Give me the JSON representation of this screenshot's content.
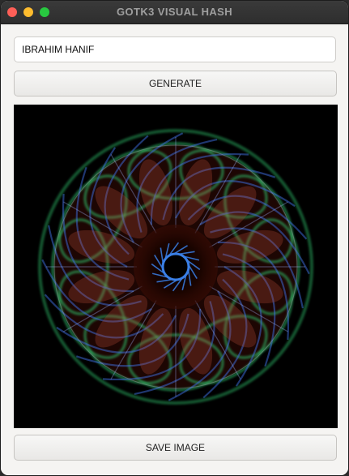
{
  "window": {
    "title": "GOTK3 VISUAL HASH"
  },
  "form": {
    "name_value": "IBRAHIM HANIF",
    "generate_label": "GENERATE",
    "save_label": "SAVE IMAGE"
  },
  "visual": {
    "background": "#000000",
    "colors": [
      "#2fbf6a",
      "#3d6ee0",
      "#c0503a",
      "#3a7fe6"
    ]
  }
}
